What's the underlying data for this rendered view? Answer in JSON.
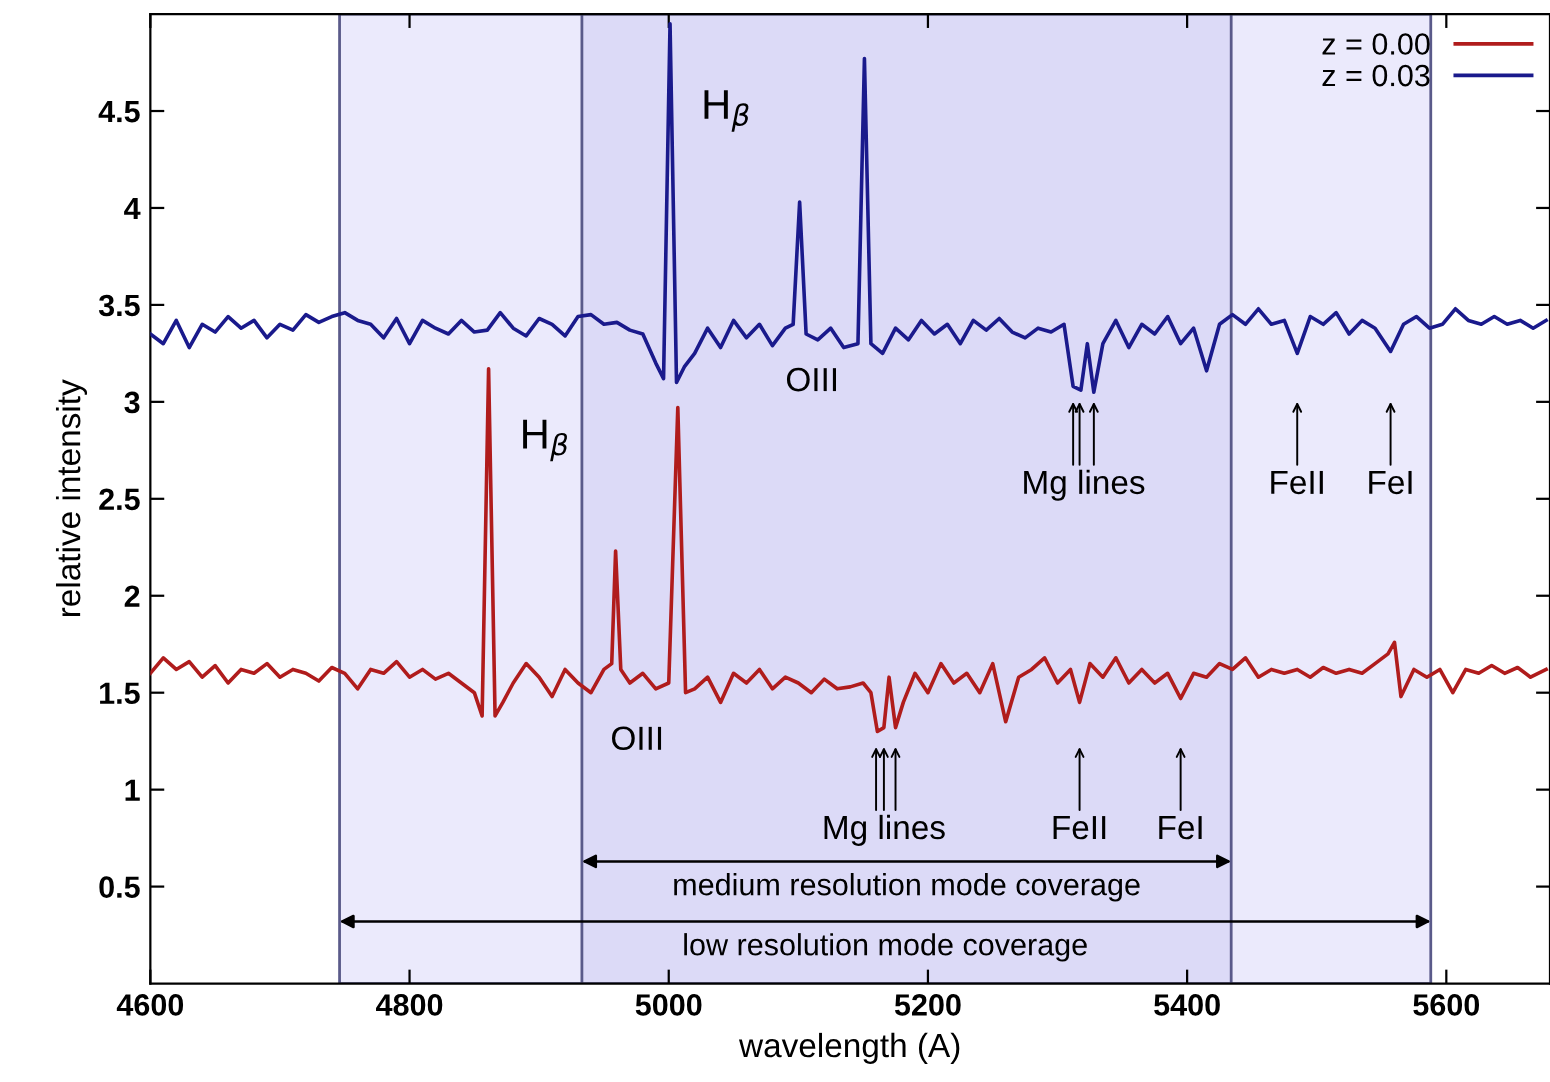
{
  "chart_data": {
    "type": "line",
    "xlabel": "wavelength (A)",
    "ylabel": "relative intensity",
    "xlim": [
      4600,
      5680
    ],
    "xticks": [
      4600,
      4800,
      5000,
      5200,
      5400,
      5600
    ],
    "ylim": [
      0,
      5
    ],
    "yticks": [
      0.5,
      1,
      1.5,
      2,
      2.5,
      3,
      3.5,
      4,
      4.5
    ],
    "grid": false,
    "legend": "top right",
    "marker": "none",
    "line_style": "solid",
    "series": [
      {
        "name": "z = 0.00",
        "color": "#b01c1c",
        "x": [
          4600,
          4610,
          4620,
          4630,
          4640,
          4650,
          4660,
          4670,
          4680,
          4690,
          4700,
          4710,
          4720,
          4730,
          4740,
          4750,
          4760,
          4770,
          4780,
          4790,
          4800,
          4810,
          4820,
          4830,
          4840,
          4850,
          4856,
          4861,
          4866,
          4872,
          4880,
          4890,
          4900,
          4910,
          4920,
          4930,
          4940,
          4950,
          4956,
          4959,
          4963,
          4970,
          4980,
          4990,
          5000,
          5007,
          5013,
          5020,
          5030,
          5040,
          5050,
          5060,
          5070,
          5080,
          5090,
          5100,
          5110,
          5120,
          5130,
          5140,
          5150,
          5156,
          5161,
          5166,
          5170,
          5175,
          5181,
          5190,
          5200,
          5210,
          5220,
          5230,
          5240,
          5250,
          5260,
          5270,
          5280,
          5290,
          5300,
          5310,
          5317,
          5325,
          5335,
          5345,
          5355,
          5365,
          5375,
          5385,
          5395,
          5405,
          5415,
          5425,
          5435,
          5445,
          5455,
          5465,
          5475,
          5485,
          5495,
          5505,
          5515,
          5525,
          5535,
          5545,
          5555,
          5560,
          5565,
          5575,
          5585,
          5595,
          5605,
          5615,
          5625,
          5635,
          5645,
          5655,
          5665,
          5677
        ],
        "values": [
          1.6,
          1.68,
          1.62,
          1.66,
          1.58,
          1.64,
          1.55,
          1.62,
          1.6,
          1.65,
          1.58,
          1.62,
          1.6,
          1.56,
          1.63,
          1.6,
          1.52,
          1.62,
          1.6,
          1.66,
          1.58,
          1.62,
          1.57,
          1.6,
          1.55,
          1.5,
          1.38,
          3.17,
          1.38,
          1.45,
          1.55,
          1.65,
          1.58,
          1.48,
          1.62,
          1.55,
          1.5,
          1.62,
          1.65,
          2.23,
          1.62,
          1.55,
          1.6,
          1.52,
          1.55,
          2.97,
          1.5,
          1.52,
          1.58,
          1.45,
          1.6,
          1.55,
          1.62,
          1.52,
          1.58,
          1.55,
          1.5,
          1.57,
          1.52,
          1.53,
          1.55,
          1.5,
          1.3,
          1.32,
          1.58,
          1.32,
          1.45,
          1.6,
          1.5,
          1.65,
          1.55,
          1.6,
          1.5,
          1.65,
          1.35,
          1.58,
          1.62,
          1.68,
          1.55,
          1.62,
          1.45,
          1.65,
          1.58,
          1.68,
          1.55,
          1.62,
          1.55,
          1.6,
          1.47,
          1.6,
          1.58,
          1.65,
          1.62,
          1.68,
          1.58,
          1.62,
          1.6,
          1.62,
          1.58,
          1.63,
          1.6,
          1.62,
          1.6,
          1.65,
          1.7,
          1.76,
          1.48,
          1.62,
          1.58,
          1.62,
          1.5,
          1.62,
          1.6,
          1.64,
          1.6,
          1.63,
          1.58,
          1.62
        ]
      },
      {
        "name": "z = 0.03",
        "color": "#1a1a8c",
        "x": [
          4600,
          4610,
          4620,
          4630,
          4640,
          4650,
          4660,
          4670,
          4680,
          4690,
          4700,
          4710,
          4720,
          4730,
          4740,
          4750,
          4760,
          4770,
          4780,
          4790,
          4800,
          4810,
          4820,
          4830,
          4840,
          4850,
          4860,
          4870,
          4880,
          4890,
          4900,
          4910,
          4920,
          4930,
          4940,
          4950,
          4960,
          4970,
          4980,
          4990,
          4996,
          5001,
          5006,
          5012,
          5020,
          5030,
          5040,
          5050,
          5060,
          5070,
          5080,
          5090,
          5096,
          5101,
          5106,
          5115,
          5125,
          5135,
          5146,
          5151,
          5156,
          5165,
          5175,
          5185,
          5195,
          5205,
          5215,
          5225,
          5235,
          5245,
          5255,
          5265,
          5275,
          5285,
          5295,
          5305,
          5312,
          5318,
          5323,
          5328,
          5335,
          5345,
          5355,
          5365,
          5375,
          5385,
          5395,
          5405,
          5415,
          5425,
          5435,
          5445,
          5455,
          5465,
          5475,
          5485,
          5495,
          5505,
          5515,
          5525,
          5535,
          5545,
          5557,
          5567,
          5577,
          5587,
          5597,
          5607,
          5617,
          5627,
          5637,
          5647,
          5657,
          5667,
          5677
        ],
        "values": [
          3.35,
          3.3,
          3.42,
          3.28,
          3.4,
          3.36,
          3.44,
          3.38,
          3.42,
          3.33,
          3.4,
          3.37,
          3.45,
          3.41,
          3.44,
          3.46,
          3.42,
          3.4,
          3.33,
          3.43,
          3.3,
          3.42,
          3.38,
          3.35,
          3.42,
          3.36,
          3.37,
          3.46,
          3.38,
          3.34,
          3.43,
          3.4,
          3.34,
          3.44,
          3.45,
          3.4,
          3.41,
          3.37,
          3.35,
          3.2,
          3.12,
          4.95,
          3.1,
          3.18,
          3.25,
          3.38,
          3.28,
          3.42,
          3.33,
          3.4,
          3.29,
          3.38,
          3.4,
          4.03,
          3.35,
          3.32,
          3.38,
          3.28,
          3.3,
          4.77,
          3.3,
          3.25,
          3.38,
          3.32,
          3.42,
          3.35,
          3.4,
          3.3,
          3.42,
          3.37,
          3.43,
          3.36,
          3.33,
          3.38,
          3.36,
          3.4,
          3.08,
          3.06,
          3.3,
          3.05,
          3.3,
          3.42,
          3.28,
          3.4,
          3.35,
          3.44,
          3.3,
          3.38,
          3.16,
          3.4,
          3.45,
          3.4,
          3.48,
          3.4,
          3.42,
          3.25,
          3.44,
          3.4,
          3.46,
          3.35,
          3.42,
          3.38,
          3.26,
          3.4,
          3.44,
          3.38,
          3.4,
          3.48,
          3.42,
          3.4,
          3.44,
          3.4,
          3.42,
          3.38,
          3.42
        ]
      }
    ],
    "bands": [
      {
        "axis": "x",
        "from": 4746,
        "to": 5588,
        "label": "low resolution mode coverage",
        "color": "#ebeafc"
      },
      {
        "axis": "x",
        "from": 4933,
        "to": 5434,
        "label": "medium resolution mode coverage",
        "color": "#dcdaf7"
      }
    ],
    "annotations": [
      "H$_{β}$",
      "OIII",
      "H$_{β}$",
      "OIII",
      "Mg lines",
      "FeII",
      "FeI",
      "Mg lines",
      "FeII",
      "FeI"
    ]
  }
}
